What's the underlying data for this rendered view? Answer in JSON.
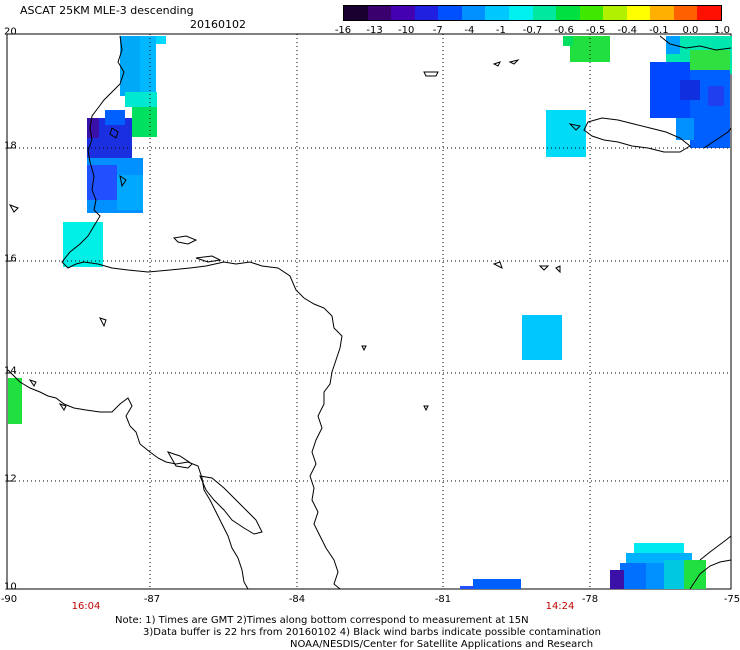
{
  "header": {
    "title": "ASCAT 25KM MLE-3 descending",
    "date": "20160102"
  },
  "colorbar": {
    "colors": [
      "#1a0030",
      "#3a006e",
      "#4400b0",
      "#2020e0",
      "#0050ff",
      "#0090ff",
      "#00c8ff",
      "#00f0f0",
      "#00e8a0",
      "#00e040",
      "#40e800",
      "#b0f000",
      "#ffff00",
      "#ffb000",
      "#ff6000",
      "#ff1000"
    ],
    "labels": [
      "-16",
      "-13",
      "-10",
      "-7",
      "-4",
      "-1",
      "-0.7",
      "-0.6",
      "-0.5",
      "-0.4",
      "-0.1",
      "0.0",
      "1.0"
    ]
  },
  "axes": {
    "lat_labels": [
      "20",
      "18",
      "16",
      "14",
      "12",
      "10"
    ],
    "lon_labels": [
      "-90",
      "-87",
      "-84",
      "-81",
      "-78",
      "-75"
    ]
  },
  "times": [
    "16:04",
    "14:24"
  ],
  "notes": [
    "Note: 1) Times are GMT 2)Times along bottom correspond to measurement at 15N",
    "3)Data buffer is 22 hrs from 20160102 4) Black wind barbs indicate possible contamination",
    "NOAA/NESDIS/Center for Satellite Applications and Research"
  ]
}
